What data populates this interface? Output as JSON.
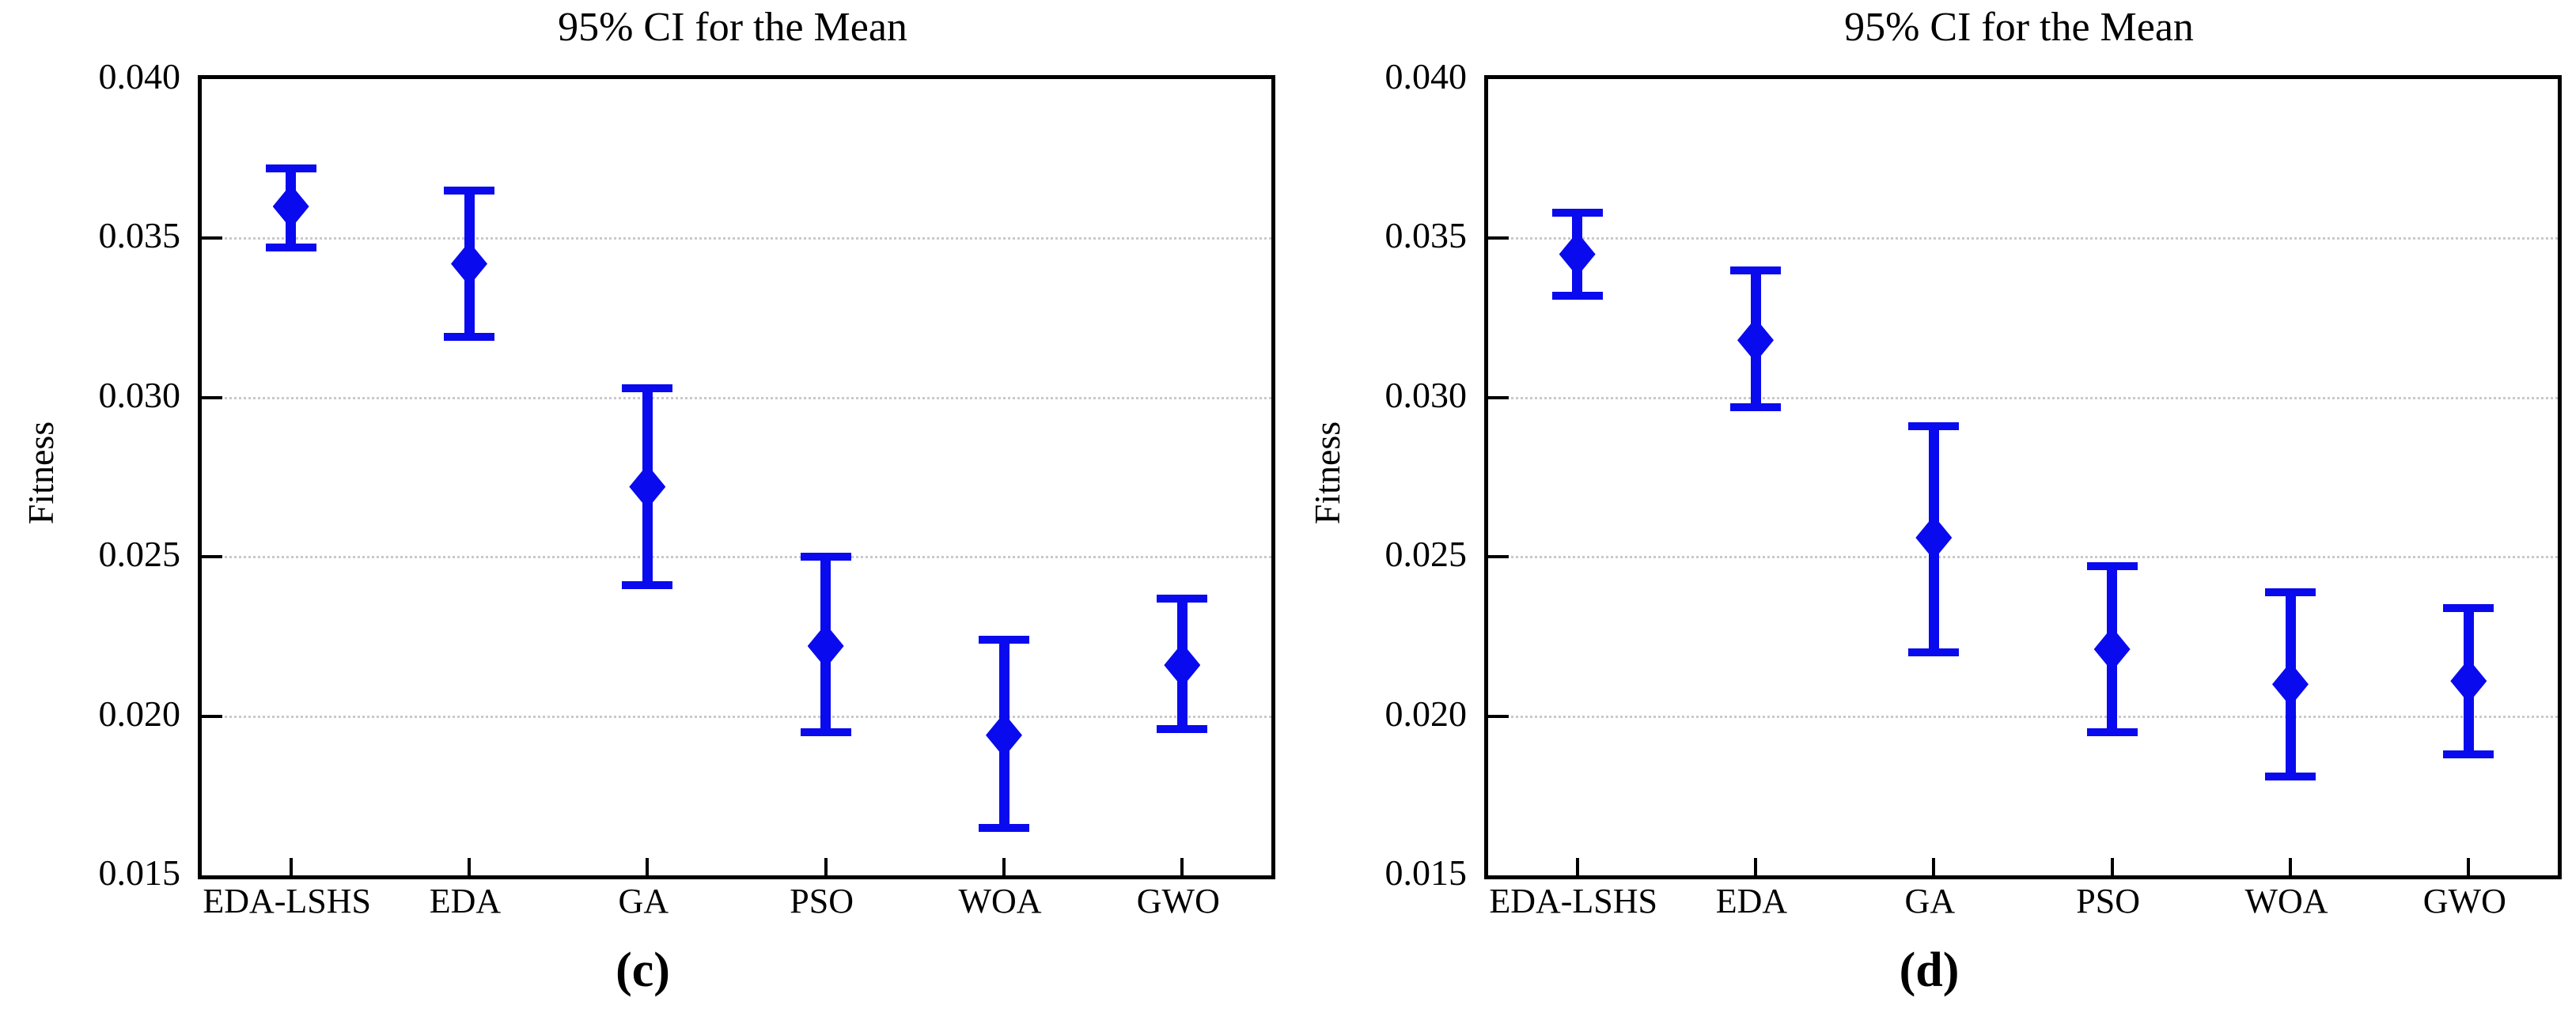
{
  "style": {
    "accent": "#0a0aee",
    "grid_color": "#c9c9c9",
    "axis_color": "#000000",
    "background": "#ffffff"
  },
  "chart_data": [
    {
      "type": "scatter",
      "subtype": "errorbar-95ci",
      "panel_label": "(c)",
      "title": "95% CI for the Mean",
      "xlabel": "",
      "ylabel": "Fitness",
      "categories": [
        "EDA-LSHS",
        "EDA",
        "GA",
        "PSO",
        "WOA",
        "GWO"
      ],
      "ylim": [
        0.015,
        0.04
      ],
      "yticks": [
        0.04,
        0.035,
        0.03,
        0.025,
        0.02,
        0.015
      ],
      "grid": "horizontal dotted at major ticks",
      "legend": "none",
      "marker": "diamond",
      "series": [
        {
          "name": "Mean",
          "means": [
            0.036,
            0.0342,
            0.0272,
            0.0222,
            0.0194,
            0.0216
          ],
          "ci_low": [
            0.0347,
            0.0319,
            0.0241,
            0.0195,
            0.0165,
            0.0196
          ],
          "ci_high": [
            0.0372,
            0.0365,
            0.0303,
            0.025,
            0.0224,
            0.0237
          ]
        }
      ]
    },
    {
      "type": "scatter",
      "subtype": "errorbar-95ci",
      "panel_label": "(d)",
      "title": "95% CI for the Mean",
      "xlabel": "",
      "ylabel": "Fitness",
      "categories": [
        "EDA-LSHS",
        "EDA",
        "GA",
        "PSO",
        "WOA",
        "GWO"
      ],
      "ylim": [
        0.015,
        0.04
      ],
      "yticks": [
        0.04,
        0.035,
        0.03,
        0.025,
        0.02,
        0.015
      ],
      "grid": "horizontal dotted at major ticks",
      "legend": "none",
      "marker": "diamond",
      "series": [
        {
          "name": "Mean",
          "means": [
            0.0345,
            0.0318,
            0.0256,
            0.0221,
            0.021,
            0.0211
          ],
          "ci_low": [
            0.0332,
            0.0297,
            0.022,
            0.0195,
            0.0181,
            0.0188
          ],
          "ci_high": [
            0.0358,
            0.034,
            0.0291,
            0.0247,
            0.0239,
            0.0234
          ]
        }
      ]
    }
  ]
}
